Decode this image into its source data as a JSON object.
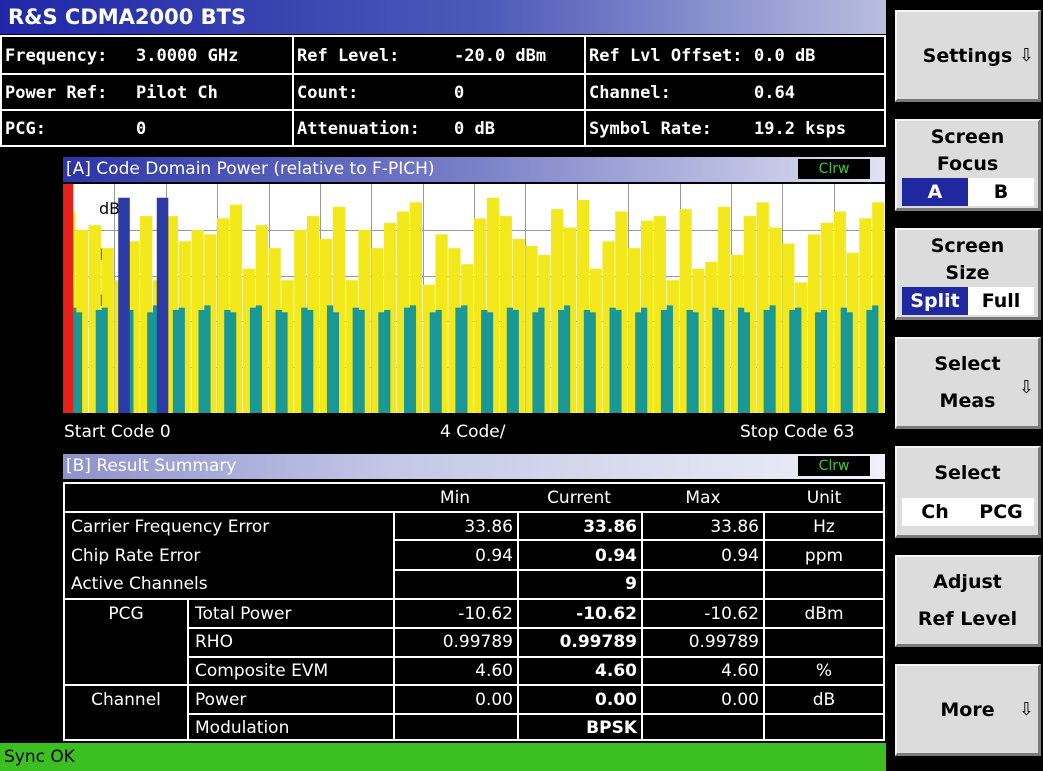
{
  "title": "R&S CDMA2000 BTS",
  "info": {
    "frequency_label": "Frequency:",
    "frequency_value": "3.0000 GHz",
    "ref_level_label": "Ref Level:",
    "ref_level_value": "-20.0 dBm",
    "ref_lvl_offset_label": "Ref Lvl Offset:",
    "ref_lvl_offset_value": "0.0 dB",
    "power_ref_label": "Power Ref:",
    "power_ref_value": "Pilot Ch",
    "count_label": "Count:",
    "count_value": "0",
    "channel_label": "Channel:",
    "channel_value": "0.64",
    "pcg_label": "PCG:",
    "pcg_value": "0",
    "attenuation_label": "Attenuation:",
    "attenuation_value": "0 dB",
    "symbol_rate_label": "Symbol Rate:",
    "symbol_rate_value": "19.2 ksps"
  },
  "panel_a": {
    "title": "[A] Code Domain Power (relative to F-PICH)",
    "trace_mode": "Clrw",
    "y_labels": [
      "dB",
      "B",
      "B"
    ],
    "start_label": "Start Code 0",
    "scale_label": "4 Code/",
    "stop_label": "Stop Code 63"
  },
  "chart_data": {
    "type": "bar",
    "x_range": [
      0,
      63
    ],
    "series": [
      {
        "name": "",
        "color": "#f2e81c",
        "values": [
          0.88,
          0.8,
          0.82,
          0.72,
          0.58,
          0.75,
          0.86,
          0.58,
          0.86,
          0.75,
          0.8,
          0.78,
          0.85,
          0.91,
          0.63,
          0.82,
          0.72,
          0.58,
          0.8,
          0.86,
          0.76,
          0.9,
          0.58,
          0.8,
          0.72,
          0.83,
          0.88,
          0.92,
          0.56,
          0.78,
          0.72,
          0.65,
          0.85,
          0.94,
          0.86,
          0.76,
          0.73,
          0.69,
          0.89,
          0.81,
          0.93,
          0.63,
          0.75,
          0.88,
          0.72,
          0.84,
          0.86,
          0.58,
          0.89,
          0.63,
          0.66,
          0.9,
          0.69,
          0.86,
          0.92,
          0.81,
          0.74,
          0.57,
          0.78,
          0.83,
          0.88,
          0.7,
          0.85,
          0.92
        ]
      },
      {
        "name": "",
        "color": "#1a9896",
        "values": [
          0.46,
          0.44,
          0.45,
          0.46,
          0.47,
          0.45,
          0.44,
          0.47,
          0.45,
          0.46,
          0.45,
          0.47,
          0.45,
          0.44,
          0.46,
          0.47,
          0.45,
          0.44,
          0.46,
          0.45,
          0.47,
          0.44,
          0.46,
          0.45,
          0.44,
          0.45,
          0.46,
          0.47,
          0.44,
          0.45,
          0.46,
          0.47,
          0.45,
          0.44,
          0.46,
          0.45,
          0.44,
          0.46,
          0.45,
          0.47,
          0.45,
          0.44,
          0.46,
          0.45,
          0.44,
          0.46,
          0.45,
          0.47,
          0.45,
          0.44,
          0.46,
          0.45,
          0.46,
          0.44,
          0.45,
          0.47,
          0.45,
          0.46,
          0.44,
          0.45,
          0.46,
          0.44,
          0.45,
          0.47
        ]
      }
    ],
    "highlight_codes": [
      {
        "code": 0,
        "color": "#e8201c",
        "value": 1.0
      },
      {
        "code": 4,
        "color": "#2c3aa6",
        "value": 0.94
      },
      {
        "code": 7,
        "color": "#2c3aa6",
        "value": 0.94
      }
    ],
    "grid": true
  },
  "panel_b": {
    "title": "[B] Result Summary",
    "trace_mode": "Clrw",
    "headers": {
      "min": "Min",
      "current": "Current",
      "max": "Max",
      "unit": "Unit"
    },
    "rows": [
      {
        "label": "Carrier Frequency Error",
        "min": "33.86",
        "current": "33.86",
        "max": "33.86",
        "unit": "Hz"
      },
      {
        "label": "Chip Rate Error",
        "min": "0.94",
        "current": "0.94",
        "max": "0.94",
        "unit": "ppm"
      },
      {
        "label": "Active Channels",
        "min": "",
        "current": "9",
        "max": "",
        "unit": ""
      },
      {
        "group": "PCG",
        "label": "Total Power",
        "min": "-10.62",
        "current": "-10.62",
        "max": "-10.62",
        "unit": "dBm"
      },
      {
        "label": "RHO",
        "min": "0.99789",
        "current": "0.99789",
        "max": "0.99789",
        "unit": ""
      },
      {
        "label": "Composite EVM",
        "min": "4.60",
        "current": "4.60",
        "max": "4.60",
        "unit": "%"
      },
      {
        "group": "Channel",
        "label": "Power",
        "min": "0.00",
        "current": "0.00",
        "max": "0.00",
        "unit": "dB"
      },
      {
        "label": "Modulation",
        "min": "",
        "current": "BPSK",
        "max": "",
        "unit": ""
      }
    ]
  },
  "status": "Sync OK",
  "softkeys": {
    "settings": "Settings",
    "screen_focus": [
      "Screen",
      "Focus"
    ],
    "focus_a": "A",
    "focus_b": "B",
    "screen_size": [
      "Screen",
      "Size"
    ],
    "size_split": "Split",
    "size_full": "Full",
    "select_meas": [
      "Select",
      "Meas"
    ],
    "select": "Select",
    "select_ch": "Ch",
    "select_pcg": "PCG",
    "adjust_ref": [
      "Adjust",
      "Ref Level"
    ],
    "more": "More",
    "arrow": "⇩"
  }
}
